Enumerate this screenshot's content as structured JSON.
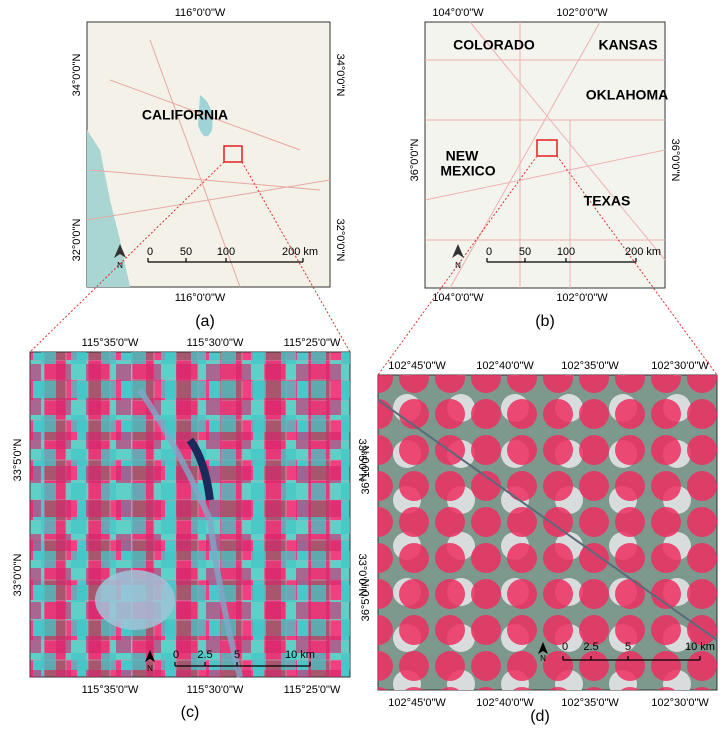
{
  "panels": [
    {
      "caption": "(a)",
      "top_labels": [
        "116°0'0\"W"
      ],
      "bottom_labels": [
        "116°0'0\"W"
      ],
      "left_labels": [
        "34°0'0\"N",
        "32°0'0\"N"
      ],
      "right_labels": [
        "34°0'0\"N",
        "32°0'0\"N"
      ],
      "places": [
        "CALIFORNIA"
      ],
      "scale_labels": [
        "0",
        "50",
        "100",
        "200 km"
      ],
      "north": "N"
    },
    {
      "caption": "(b)",
      "top_labels": [
        "104°0'0\"W",
        "102°0'0\"W"
      ],
      "bottom_labels": [
        "104°0'0\"W",
        "102°0'0\"W"
      ],
      "left_labels": [
        "36°0'0\"N"
      ],
      "right_labels": [
        "36°0'0\"N"
      ],
      "places": [
        "COLORADO",
        "KANSAS",
        "OKLAHOMA",
        "NEW",
        "MEXICO",
        "TEXAS"
      ],
      "scale_labels": [
        "0",
        "50",
        "100",
        "200 km"
      ],
      "north": "N"
    },
    {
      "caption": "(c)",
      "top_labels": [
        "115°35'0\"W",
        "115°30'0\"W",
        "115°25'0\"W"
      ],
      "bottom_labels": [
        "115°35'0\"W",
        "115°30'0\"W",
        "115°25'0\"W"
      ],
      "left_labels": [
        "33°5'0\"N",
        "33°0'0\"N"
      ],
      "right_labels": [
        "33°5'0\"N",
        "33°0'0\"N"
      ],
      "places": [],
      "scale_labels": [
        "0",
        "2.5",
        "5",
        "10 km"
      ],
      "north": "N"
    },
    {
      "caption": "(d)",
      "top_labels": [
        "102°45'0\"W",
        "102°40'0\"W",
        "102°35'0\"W",
        "102°30'0\"W"
      ],
      "bottom_labels": [
        "102°45'0\"W",
        "102°40'0\"W",
        "102°35'0\"W",
        "102°30'0\"W"
      ],
      "left_labels": [
        "36°10'0\"N",
        "36°5'0\"N"
      ],
      "right_labels": [],
      "places": [],
      "scale_labels": [
        "0",
        "2.5",
        "5",
        "10 km"
      ],
      "north": "N"
    }
  ]
}
